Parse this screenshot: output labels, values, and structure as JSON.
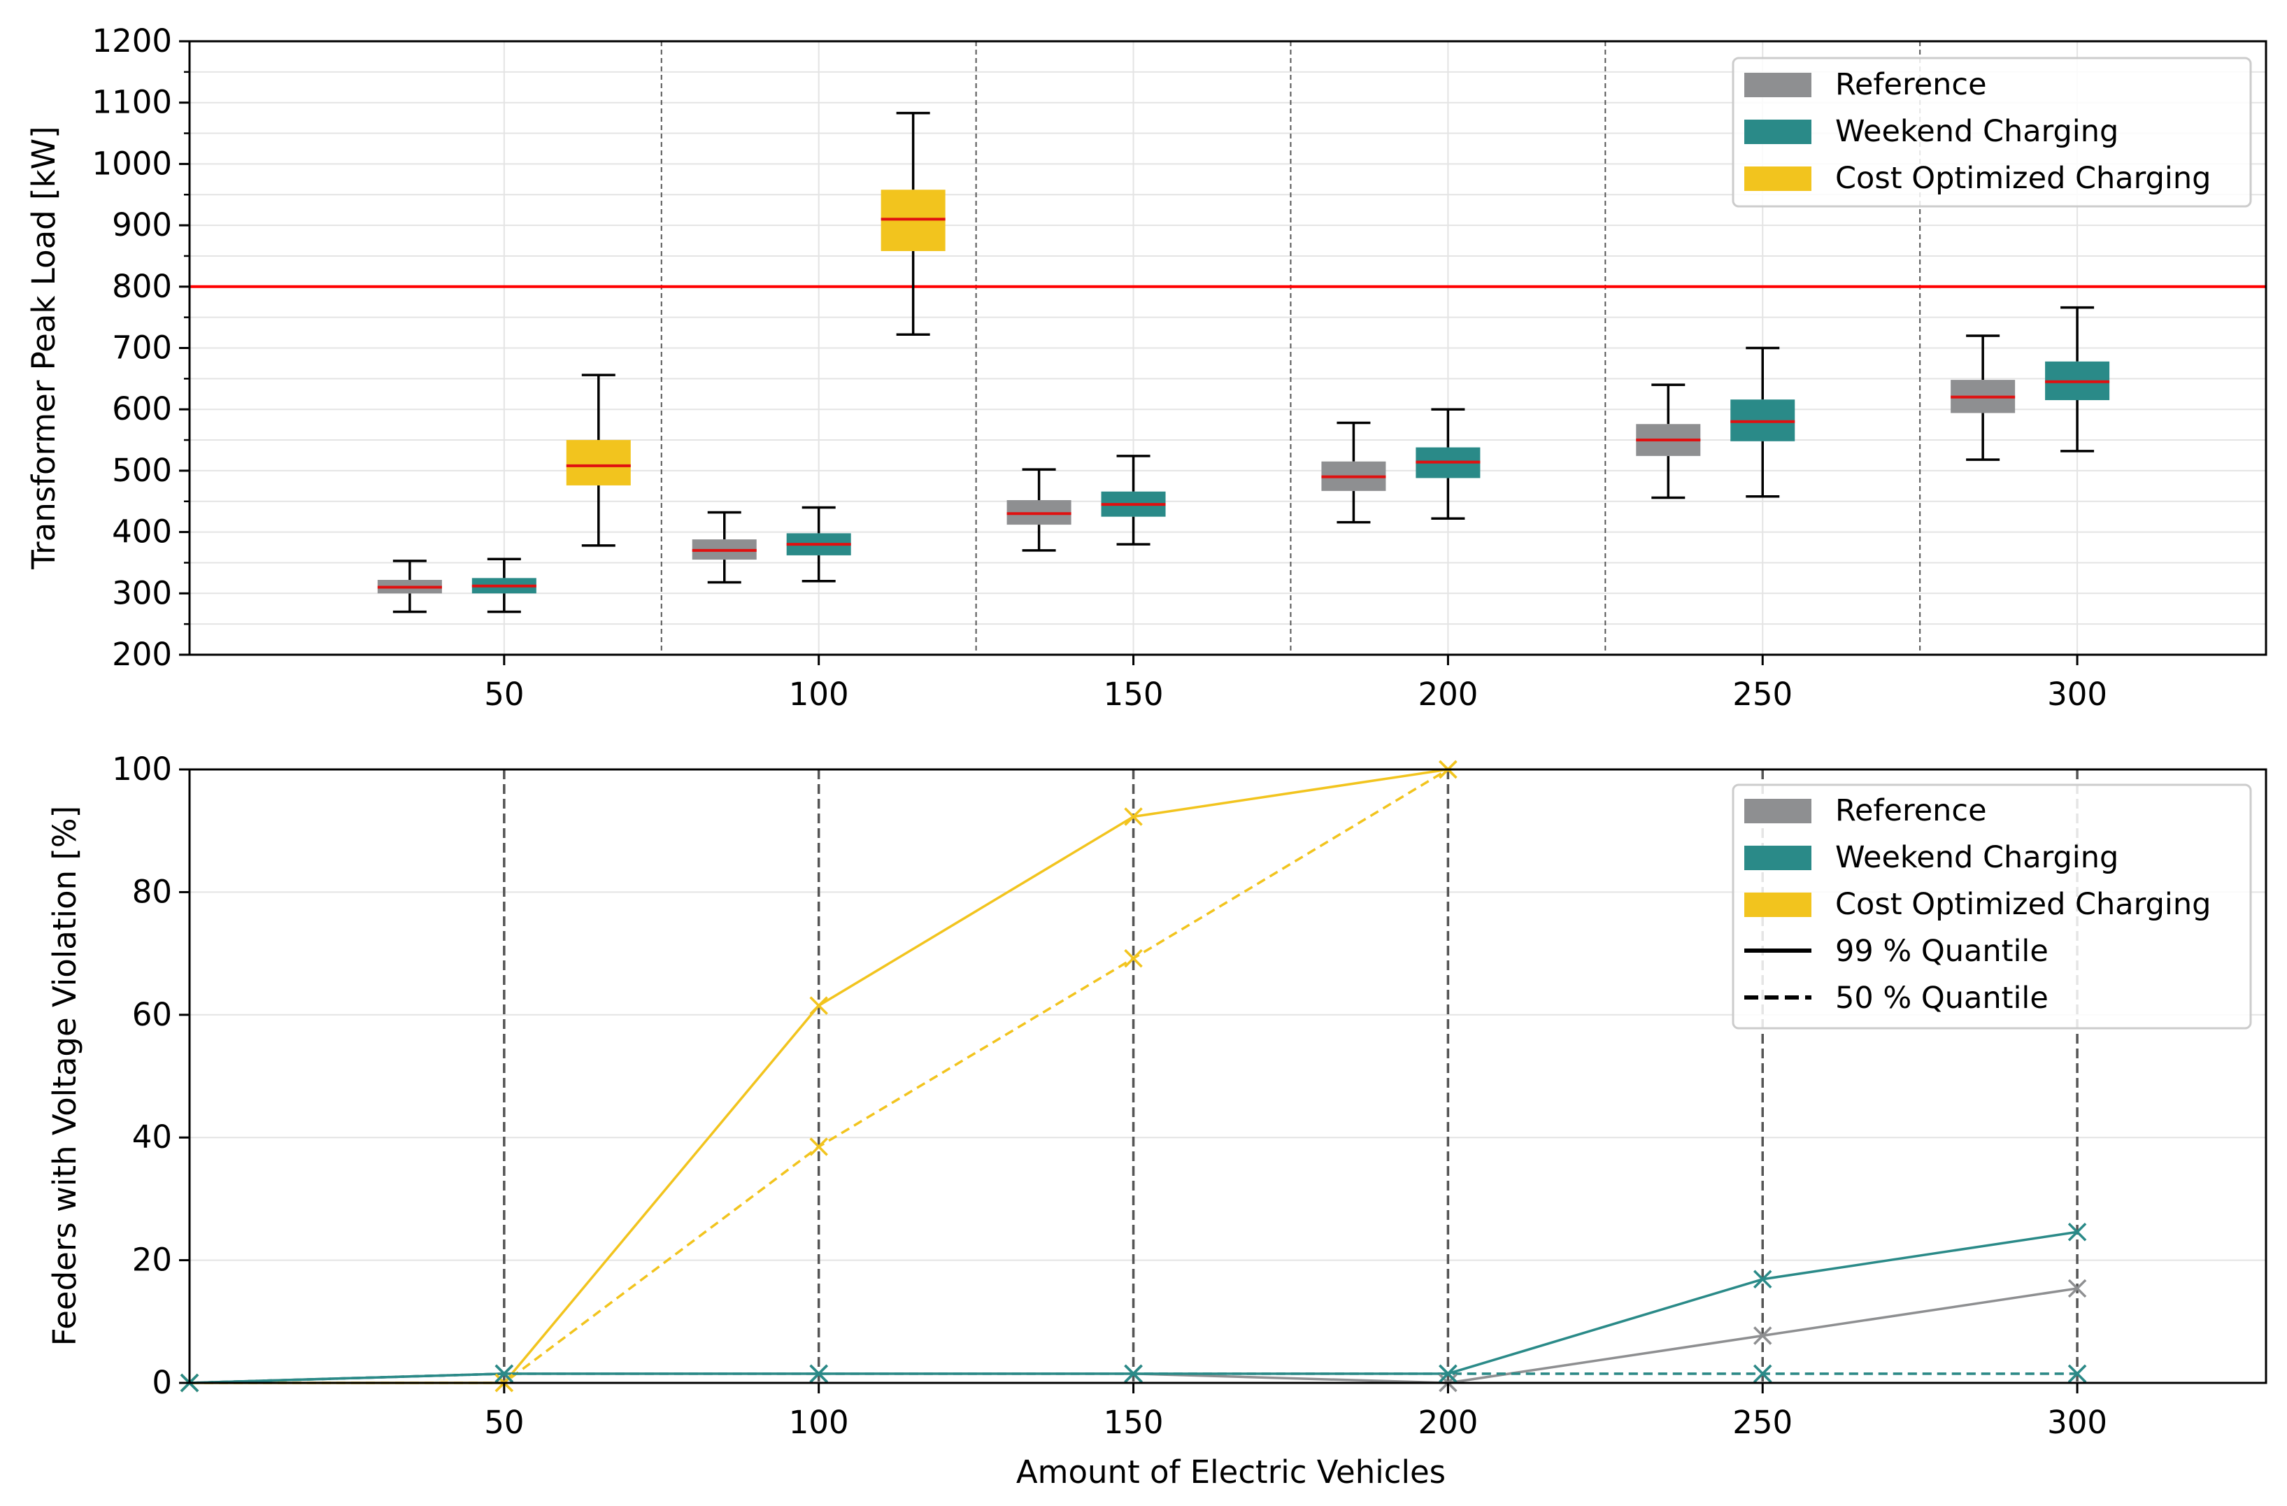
{
  "colors": {
    "reference": "#8e8f91",
    "weekend": "#2a8a88",
    "cost": "#f2c41e",
    "median": "#e01010",
    "limit": "#ff0000",
    "separator": "#555555",
    "grid": "#e4e4e4"
  },
  "top": {
    "ylabel": "Transformer Peak Load [kW]",
    "yticks": [
      "200",
      "300",
      "400",
      "500",
      "600",
      "700",
      "800",
      "900",
      "1000",
      "1100",
      "1200"
    ],
    "xticks": [
      "50",
      "100",
      "150",
      "200",
      "250",
      "300"
    ],
    "legend": [
      "Reference",
      "Weekend Charging",
      "Cost Optimized Charging"
    ]
  },
  "bottom": {
    "ylabel": "Feeders with Voltage Violation [%]",
    "xlabel": "Amount of Electric Vehicles",
    "yticks": [
      "0",
      "20",
      "40",
      "60",
      "80",
      "100"
    ],
    "xticks": [
      "50",
      "100",
      "150",
      "200",
      "250",
      "300"
    ],
    "legend": [
      "Reference",
      "Weekend Charging",
      "Cost Optimized Charging",
      "99 % Quantile",
      "50 % Quantile"
    ]
  },
  "chart_data": [
    {
      "type": "box",
      "ylabel": "Transformer Peak Load [kW]",
      "xlim": [
        0,
        330
      ],
      "ylim": [
        200,
        1200
      ],
      "limit_line": 800,
      "separators": [
        75,
        125,
        175,
        225,
        275
      ],
      "boxes": [
        {
          "series": "Reference",
          "x": 35,
          "min": 270,
          "q1": 300,
          "median": 310,
          "q3": 322,
          "max": 353
        },
        {
          "series": "Weekend Charging",
          "x": 50,
          "min": 270,
          "q1": 300,
          "median": 312,
          "q3": 325,
          "max": 356
        },
        {
          "series": "Cost Optimized Charging",
          "x": 65,
          "min": 378,
          "q1": 476,
          "median": 508,
          "q3": 550,
          "max": 656
        },
        {
          "series": "Reference",
          "x": 85,
          "min": 318,
          "q1": 355,
          "median": 370,
          "q3": 388,
          "max": 432
        },
        {
          "series": "Weekend Charging",
          "x": 100,
          "min": 320,
          "q1": 362,
          "median": 380,
          "q3": 398,
          "max": 440
        },
        {
          "series": "Cost Optimized Charging",
          "x": 115,
          "min": 722,
          "q1": 858,
          "median": 910,
          "q3": 958,
          "max": 1083
        },
        {
          "series": "Reference",
          "x": 135,
          "min": 370,
          "q1": 412,
          "median": 430,
          "q3": 452,
          "max": 502
        },
        {
          "series": "Weekend Charging",
          "x": 150,
          "min": 380,
          "q1": 425,
          "median": 445,
          "q3": 466,
          "max": 524
        },
        {
          "series": "Reference",
          "x": 185,
          "min": 416,
          "q1": 467,
          "median": 490,
          "q3": 515,
          "max": 578
        },
        {
          "series": "Weekend Charging",
          "x": 200,
          "min": 422,
          "q1": 488,
          "median": 514,
          "q3": 538,
          "max": 600
        },
        {
          "series": "Reference",
          "x": 235,
          "min": 456,
          "q1": 524,
          "median": 550,
          "q3": 576,
          "max": 640
        },
        {
          "series": "Weekend Charging",
          "x": 250,
          "min": 458,
          "q1": 548,
          "median": 580,
          "q3": 616,
          "max": 700
        },
        {
          "series": "Reference",
          "x": 285,
          "min": 518,
          "q1": 594,
          "median": 620,
          "q3": 648,
          "max": 720
        },
        {
          "series": "Weekend Charging",
          "x": 300,
          "min": 532,
          "q1": 615,
          "median": 645,
          "q3": 678,
          "max": 766
        }
      ],
      "legend": [
        "Reference",
        "Weekend Charging",
        "Cost Optimized Charging"
      ]
    },
    {
      "type": "line",
      "ylabel": "Feeders with Voltage Violation [%]",
      "xlabel": "Amount of Electric Vehicles",
      "xlim": [
        0,
        330
      ],
      "ylim": [
        0,
        100
      ],
      "vlines": [
        50,
        100,
        150,
        200,
        250,
        300
      ],
      "series": [
        {
          "name": "Reference 50 % Quantile",
          "style": "dashed",
          "color": "reference",
          "x": [
            0,
            50,
            100,
            150,
            200,
            250,
            300
          ],
          "values": [
            0,
            1.5,
            1.5,
            1.5,
            1.5,
            1.5,
            1.5
          ]
        },
        {
          "name": "Reference 99 % Quantile",
          "style": "solid",
          "color": "reference",
          "x": [
            0,
            50,
            100,
            150,
            200,
            250,
            300
          ],
          "values": [
            0,
            1.5,
            1.5,
            1.5,
            0,
            7.7,
            15.4
          ]
        },
        {
          "name": "Cost Optimized Charging 50 % Quantile",
          "style": "dashed",
          "color": "cost",
          "x": [
            0,
            50,
            100,
            150,
            200
          ],
          "values": [
            0,
            0,
            38.5,
            69.2,
            100
          ]
        },
        {
          "name": "Cost Optimized Charging 99 % Quantile",
          "style": "solid",
          "color": "cost",
          "x": [
            0,
            50,
            100,
            150,
            200
          ],
          "values": [
            0,
            0,
            61.5,
            92.3,
            100
          ]
        },
        {
          "name": "Weekend Charging 50 % Quantile",
          "style": "dashed",
          "color": "weekend",
          "x": [
            0,
            50,
            100,
            150,
            200,
            250,
            300
          ],
          "values": [
            0,
            1.5,
            1.5,
            1.5,
            1.5,
            1.5,
            1.5
          ]
        },
        {
          "name": "Weekend Charging 99 % Quantile",
          "style": "solid",
          "color": "weekend",
          "x": [
            0,
            50,
            100,
            150,
            200,
            250,
            300
          ],
          "values": [
            0,
            1.5,
            1.5,
            1.5,
            1.5,
            16.9,
            24.6
          ]
        }
      ],
      "legend": [
        "Reference",
        "Weekend Charging",
        "Cost Optimized Charging",
        "99 % Quantile",
        "50 % Quantile"
      ]
    }
  ]
}
